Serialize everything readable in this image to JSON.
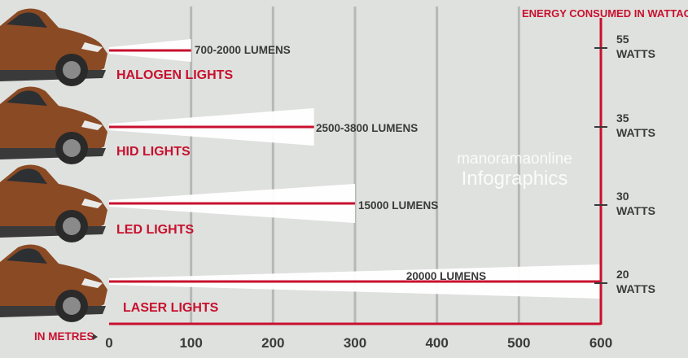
{
  "chart_data": {
    "type": "bar",
    "xlabel": "IN METRES",
    "xlim": [
      0,
      600
    ],
    "xticks": [
      "0",
      "100",
      "200",
      "300",
      "400",
      "500",
      "600"
    ],
    "grid": true,
    "secondary_axis_label": "ENERGY CONSUMED IN WATTAGE",
    "categories": [
      "HALOGEN LIGHTS",
      "HID LIGHTS",
      "LED LIGHTS",
      "LASER LIGHTS"
    ],
    "values": [
      100,
      250,
      300,
      600
    ],
    "brightness_labels": [
      "700-2000 LUMENS",
      "2500-3800 LUMENS",
      "15000 LUMENS",
      "20000 LUMENS"
    ],
    "wattage": [
      {
        "value": "55",
        "unit": "WATTS"
      },
      {
        "value": "35",
        "unit": "WATTS"
      },
      {
        "value": "30",
        "unit": "WATTS"
      },
      {
        "value": "20",
        "unit": "WATTS"
      }
    ],
    "colors": {
      "accent": "#c8102e",
      "grid": "#b7b7b7",
      "text": "#3a3a3a",
      "background": "#dfe1de",
      "beam": "#ffffff",
      "car_body": "#8a4a24"
    }
  },
  "watermark": {
    "line1": "manoramaonline",
    "line2": "Infographics"
  }
}
